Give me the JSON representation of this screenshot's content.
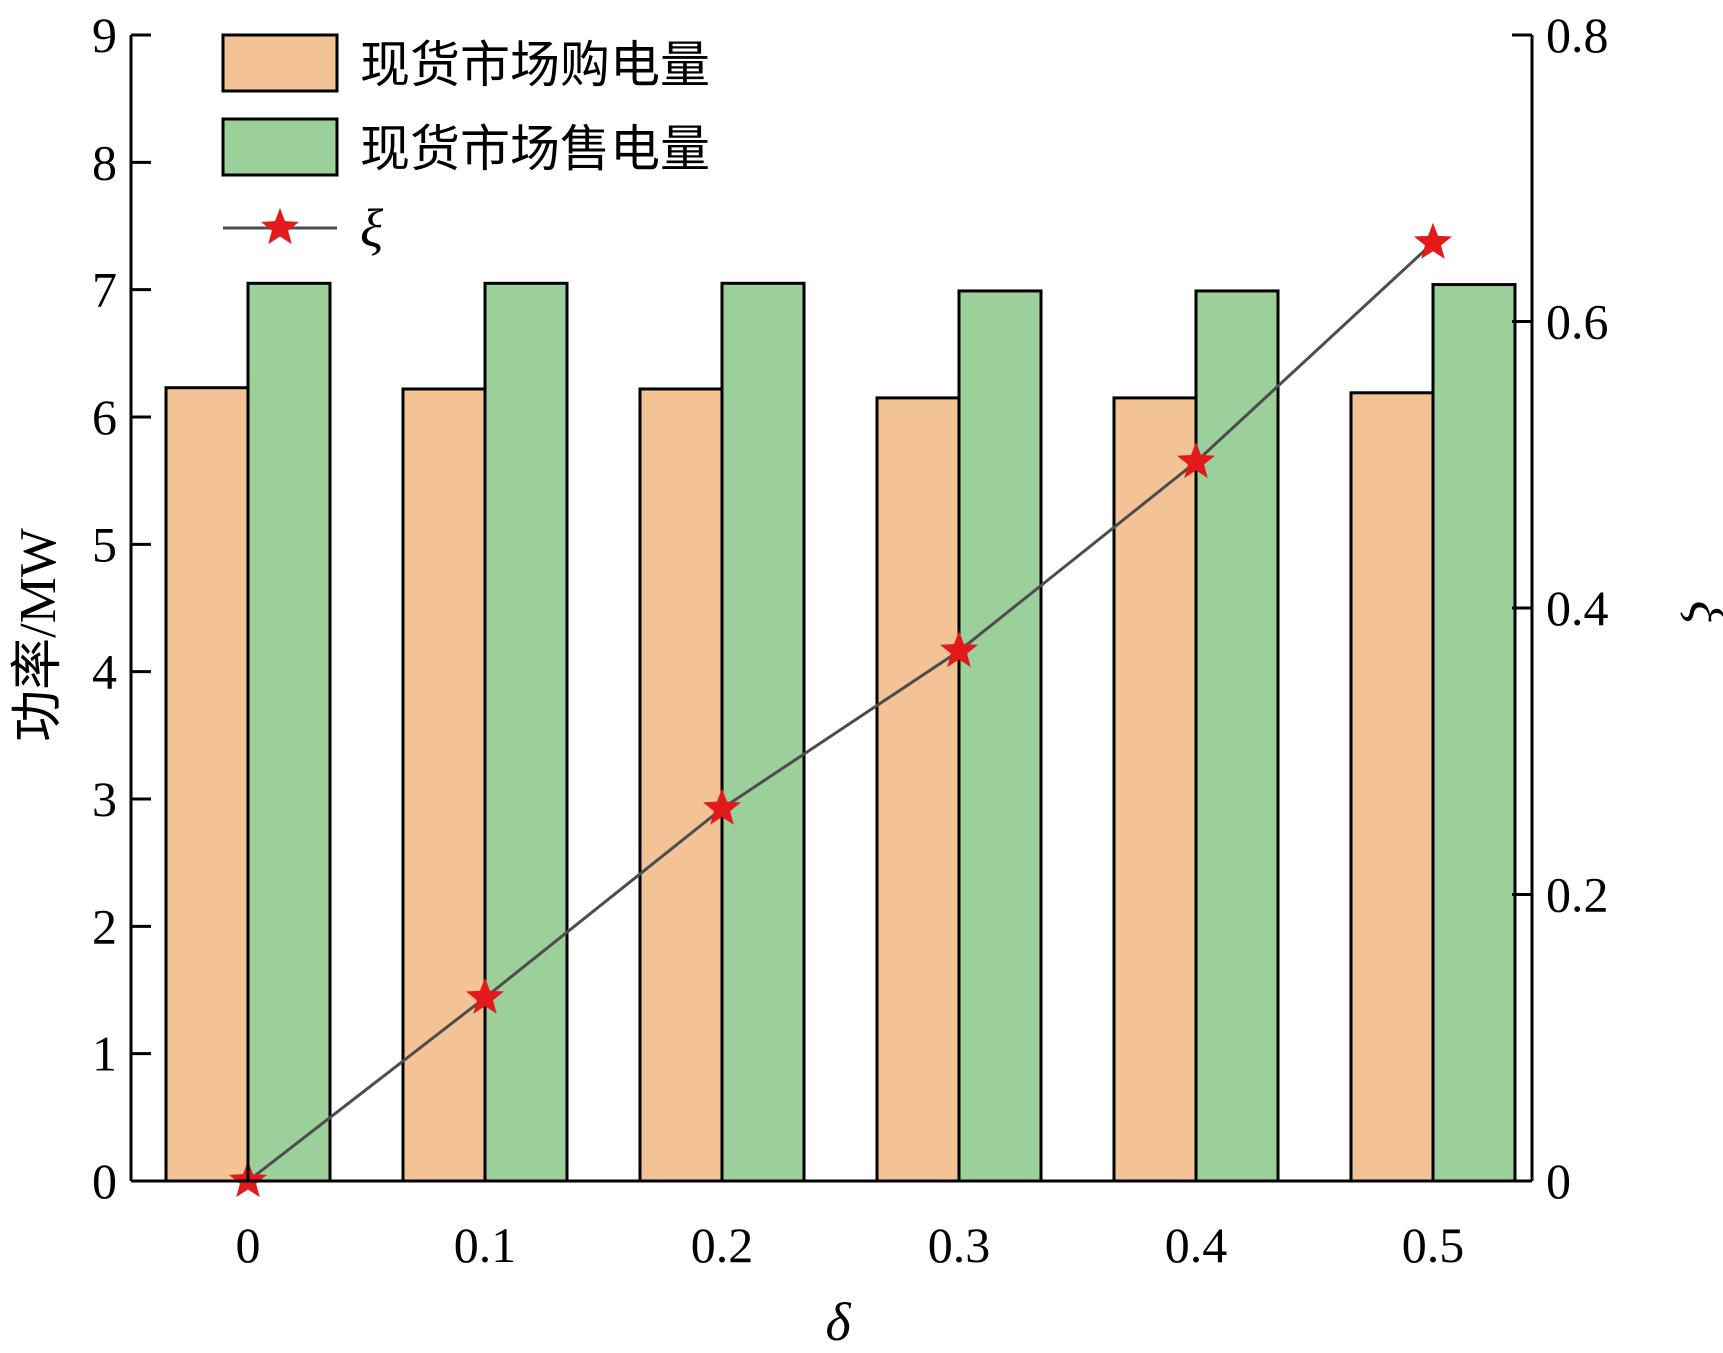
{
  "chart_data": {
    "type": "bar",
    "categories": [
      "0",
      "0.1",
      "0.2",
      "0.3",
      "0.4",
      "0.5"
    ],
    "series": [
      {
        "name": "现货市场购电量",
        "type": "bar",
        "axis": "left",
        "color": "#f4c395",
        "values": [
          6.23,
          6.22,
          6.22,
          6.15,
          6.15,
          6.19
        ]
      },
      {
        "name": "现货市场售电量",
        "type": "bar",
        "axis": "left",
        "color": "#9bd09a",
        "values": [
          7.05,
          7.05,
          7.05,
          6.99,
          6.99,
          7.04
        ]
      },
      {
        "name": "ξ",
        "type": "line",
        "axis": "right",
        "color": "#4d4d4d",
        "marker_color": "#e31a1c",
        "marker": "star",
        "values": [
          0.0,
          0.128,
          0.26,
          0.37,
          0.502,
          0.655
        ]
      }
    ],
    "xlabel": "δ",
    "ylabel": "功率/MW",
    "y2label": "ξ",
    "ylim": [
      0,
      9
    ],
    "y2lim": [
      0,
      0.8
    ],
    "yticks": [
      "0",
      "1",
      "2",
      "3",
      "4",
      "5",
      "6",
      "7",
      "8",
      "9"
    ],
    "y2ticks": [
      "0",
      "0.2",
      "0.4",
      "0.6",
      "0.8"
    ],
    "legend_position": "top-left",
    "grid": false
  }
}
